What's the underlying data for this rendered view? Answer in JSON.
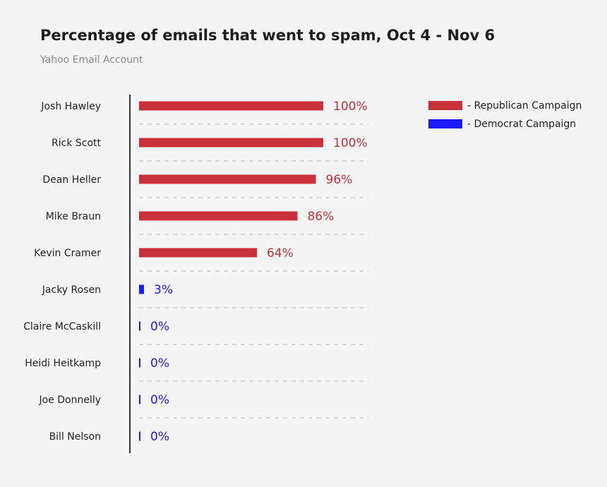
{
  "colors": {
    "republican": "#c9303a",
    "democrat": "#1a1aff",
    "axis": "#333333",
    "grid": "#bdbdbd"
  },
  "chart_data": {
    "type": "bar",
    "orientation": "horizontal",
    "title": "Percentage of emails that went to spam, Oct 4 - Nov 6",
    "subtitle": "Yahoo Email Account",
    "categories": [
      "Josh Hawley",
      "Rick Scott",
      "Dean Heller",
      "Mike Braun",
      "Kevin Cramer",
      "Jacky Rosen",
      "Claire McCaskill",
      "Heidi Heitkamp",
      "Joe Donnelly",
      "Bill Nelson"
    ],
    "values": [
      100,
      100,
      96,
      86,
      64,
      3,
      0,
      0,
      0,
      0
    ],
    "value_labels": [
      "100%",
      "100%",
      "96%",
      "86%",
      "64%",
      "3%",
      "0%",
      "0%",
      "0%",
      "0%"
    ],
    "party": [
      "republican",
      "republican",
      "republican",
      "republican",
      "republican",
      "democrat",
      "democrat",
      "democrat",
      "democrat",
      "democrat"
    ],
    "xlim": [
      0,
      100
    ],
    "legend": [
      {
        "key": "republican",
        "label": "- Republican Campaign"
      },
      {
        "key": "democrat",
        "label": "- Democrat Campaign"
      }
    ],
    "legend_position": "top-right",
    "grid": true
  }
}
